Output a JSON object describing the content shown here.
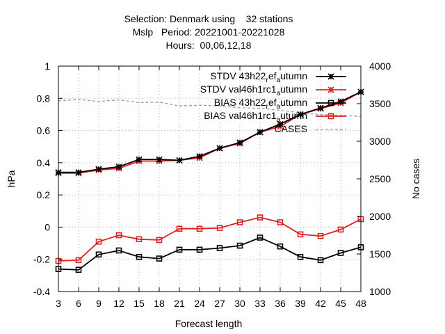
{
  "title_lines": [
    "Selection: Denmark using    32 stations",
    "Mslp   Period: 20221001-20221028",
    "Hours:  00,06,12,18"
  ],
  "chart_data": {
    "type": "line",
    "xlabel": "Forecast length",
    "ylabel": "hPa",
    "y2label": "No cases",
    "xlim": [
      3,
      48
    ],
    "ylim": [
      -0.4,
      1.0
    ],
    "y2lim": [
      1000,
      4000
    ],
    "x": [
      3,
      6,
      9,
      12,
      15,
      18,
      21,
      24,
      27,
      30,
      33,
      36,
      39,
      42,
      45,
      48
    ],
    "xticks": [
      "3",
      "6",
      "9",
      "12",
      "15",
      "18",
      "21",
      "24",
      "27",
      "30",
      "33",
      "36",
      "39",
      "42",
      "45",
      "48"
    ],
    "yticks": [
      "-0.4",
      "-0.2",
      "0",
      "0.2",
      "0.4",
      "0.6",
      "0.8",
      "1"
    ],
    "y2ticks": [
      "1000",
      "1500",
      "2000",
      "2500",
      "3000",
      "3500",
      "4000"
    ],
    "grid": true,
    "legend_position": "top-right",
    "series": [
      {
        "name": "STDV 43h22_ref_autumn",
        "legend_base": "STDV 43h22",
        "legend_parts": [
          [
            "r",
            "ef"
          ],
          [
            "a",
            "utumn"
          ]
        ],
        "color": "#000000",
        "marker": "star",
        "axis": "y",
        "values": [
          0.34,
          0.34,
          0.36,
          0.375,
          0.42,
          0.42,
          0.415,
          0.44,
          0.49,
          0.525,
          0.59,
          0.64,
          0.7,
          0.74,
          0.78,
          0.84
        ]
      },
      {
        "name": "STDV val46h1rc1_autumn",
        "legend_base": "STDV val46h1rc1",
        "legend_parts": [
          [
            "a",
            "utumn"
          ]
        ],
        "color": "#e02020",
        "marker": "star",
        "axis": "y",
        "values": [
          0.335,
          0.335,
          0.355,
          0.365,
          0.41,
          0.41,
          0.415,
          0.43,
          0.49,
          0.52,
          0.59,
          0.625,
          0.7,
          0.735,
          0.77,
          0.84
        ]
      },
      {
        "name": "BIAS 43h22_ref_autumn",
        "legend_base": "BIAS 43h22",
        "legend_parts": [
          [
            "r",
            "ef"
          ],
          [
            "a",
            "utumn"
          ]
        ],
        "color": "#000000",
        "marker": "square",
        "axis": "y",
        "values": [
          -0.26,
          -0.265,
          -0.17,
          -0.145,
          -0.185,
          -0.195,
          -0.14,
          -0.14,
          -0.13,
          -0.115,
          -0.065,
          -0.12,
          -0.185,
          -0.205,
          -0.16,
          -0.125
        ]
      },
      {
        "name": "BIAS val46h1rc1_autumn",
        "legend_base": "BIAS val46h1rc1",
        "legend_parts": [
          [
            "a",
            "utumn"
          ]
        ],
        "color": "#e02020",
        "marker": "square",
        "axis": "y",
        "values": [
          -0.21,
          -0.205,
          -0.09,
          -0.05,
          -0.075,
          -0.08,
          -0.01,
          -0.01,
          -0.005,
          0.03,
          0.06,
          0.03,
          -0.045,
          -0.055,
          -0.015,
          0.05
        ]
      },
      {
        "name": "CASES",
        "color": "#999999",
        "marker": "none",
        "dashed": true,
        "axis": "y2",
        "values": [
          3540,
          3555,
          3530,
          3550,
          3515,
          3520,
          3470,
          3480,
          3470,
          3445,
          3440,
          3410,
          3380,
          3355,
          3345,
          3330
        ]
      }
    ]
  }
}
